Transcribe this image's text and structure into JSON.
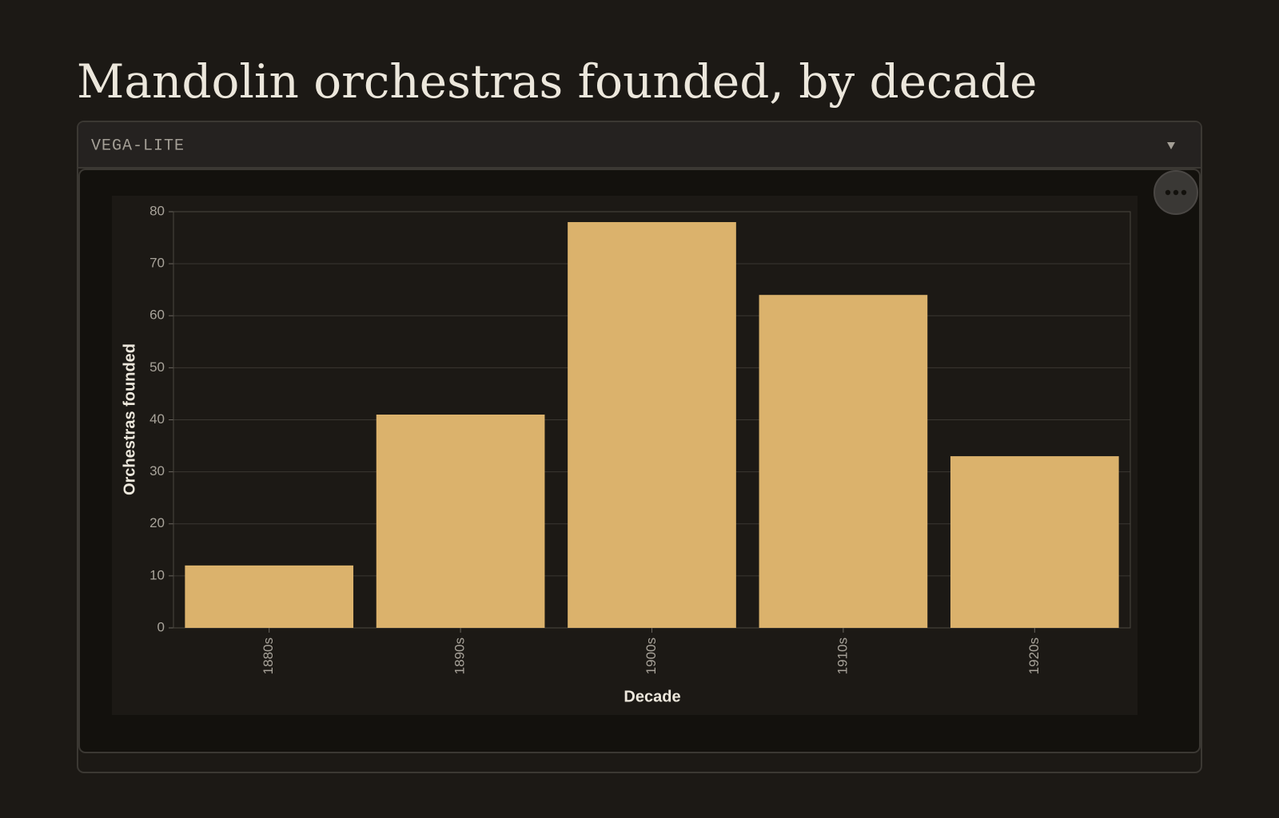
{
  "panel_label": "VEGA-LITE",
  "chart_data": {
    "type": "bar",
    "title": "Mandolin orchestras founded, by decade",
    "categories": [
      "1880s",
      "1890s",
      "1900s",
      "1910s",
      "1920s"
    ],
    "values": [
      12,
      41,
      78,
      64,
      33
    ],
    "color": "#dbb26c",
    "x_label": "Decade",
    "y_label": "Orchestras founded",
    "ylim": [
      0,
      80
    ],
    "yticks": [
      0,
      10,
      20,
      30,
      40,
      50,
      60,
      70,
      80
    ],
    "grid": true
  }
}
